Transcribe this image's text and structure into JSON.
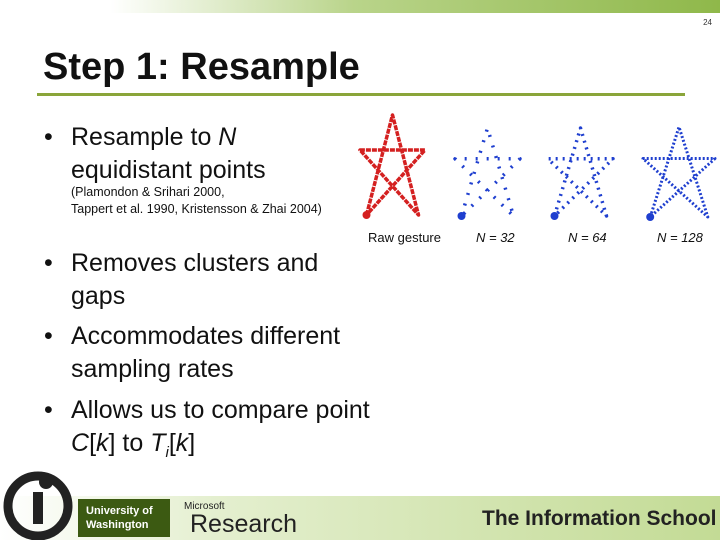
{
  "page_number": "24",
  "title": "Step 1: Resample",
  "bullets": [
    {
      "parts": [
        "Resample to ",
        "N",
        " equidistant points"
      ]
    },
    {
      "parts": [
        "Removes clusters and gaps"
      ]
    },
    {
      "parts": [
        "Accommodates different sampling rates"
      ]
    },
    {
      "parts": [
        "Allows us to compare point ",
        "C",
        "[",
        "k",
        "] to ",
        "T",
        "i",
        "[",
        "k",
        "]"
      ]
    }
  ],
  "bullet_symbol": "•",
  "citation": [
    "(Plamondon & Srihari 2000,",
    "Tappert et al. 1990, Kristensson & Zhai 2004)"
  ],
  "figure_captions": [
    "Raw gesture",
    "N = 32",
    "N = 64",
    "N = 128"
  ],
  "footer": {
    "university": [
      "University of",
      "Washington"
    ],
    "microsoft": "Microsoft",
    "research": "Research",
    "school": "The Information School"
  }
}
